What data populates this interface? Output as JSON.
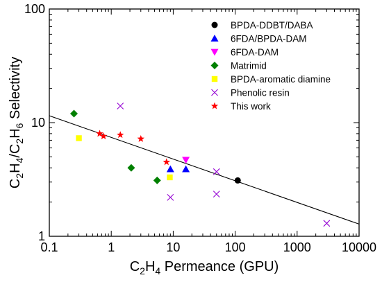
{
  "chart_data": {
    "type": "scatter",
    "x_scale": "log",
    "y_scale": "log",
    "xlim": [
      0.1,
      10000
    ],
    "ylim": [
      1,
      100
    ],
    "x_ticks": [
      {
        "value": 0.1,
        "label": "0.1"
      },
      {
        "value": 1,
        "label": "1"
      },
      {
        "value": 10,
        "label": "10"
      },
      {
        "value": 100,
        "label": "100"
      },
      {
        "value": 1000,
        "label": "1000"
      },
      {
        "value": 10000,
        "label": "10000"
      }
    ],
    "y_ticks": [
      {
        "value": 1,
        "label": "1"
      },
      {
        "value": 10,
        "label": "10"
      },
      {
        "value": 100,
        "label": "100"
      }
    ],
    "xlabel": {
      "main": "C",
      "sub": "2",
      "rest": "H",
      "sub2": "4",
      "tail": " Permeance (GPU)"
    },
    "ylabel": {
      "parts": [
        {
          "t": "C",
          "s": false
        },
        {
          "t": "2",
          "s": true
        },
        {
          "t": "H",
          "s": false
        },
        {
          "t": "4",
          "s": true
        },
        {
          "t": "/C",
          "s": false
        },
        {
          "t": "2",
          "s": true
        },
        {
          "t": "H",
          "s": false
        },
        {
          "t": "6",
          "s": true
        },
        {
          "t": " Selectivity",
          "s": false
        }
      ]
    },
    "legend_position": "top-right",
    "grid": false,
    "series": [
      {
        "name": "BPDA-DDBT/DABA",
        "marker": "circle",
        "color": "#000000",
        "points": [
          [
            110,
            3.1
          ]
        ]
      },
      {
        "name": "6FDA/BPDA-DAM",
        "marker": "triangle-up",
        "color": "#0000ff",
        "points": [
          [
            9,
            3.9
          ],
          [
            16,
            3.9
          ]
        ]
      },
      {
        "name": "6FDA-DAM",
        "marker": "triangle-down",
        "color": "#ff00ff",
        "points": [
          [
            16,
            4.7
          ]
        ]
      },
      {
        "name": "Matrimid",
        "marker": "diamond",
        "color": "#008000",
        "points": [
          [
            0.25,
            12
          ],
          [
            2.1,
            4
          ],
          [
            5.5,
            3.1
          ]
        ]
      },
      {
        "name": "BPDA-aromatic diamine",
        "marker": "square",
        "color": "#ffff00",
        "points": [
          [
            0.3,
            7.3
          ],
          [
            8.8,
            3.3
          ]
        ]
      },
      {
        "name": "Phenolic resin",
        "marker": "x",
        "color": "#9400d3",
        "points": [
          [
            1.4,
            14
          ],
          [
            9,
            2.2
          ],
          [
            50,
            3.7
          ],
          [
            50,
            2.35
          ],
          [
            3000,
            1.3
          ]
        ]
      },
      {
        "name": "This work",
        "marker": "star",
        "color": "#ff0000",
        "points": [
          [
            0.65,
            8
          ],
          [
            0.75,
            7.6
          ],
          [
            1.4,
            7.8
          ],
          [
            3,
            7.2
          ],
          [
            7.8,
            4.5
          ]
        ]
      }
    ],
    "trend_line": {
      "points": [
        [
          0.1,
          11.5
        ],
        [
          10000,
          1.28
        ]
      ],
      "color": "#000000"
    }
  }
}
